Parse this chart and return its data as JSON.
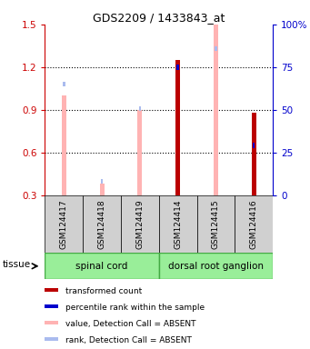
{
  "title": "GDS2209 / 1433843_at",
  "samples": [
    "GSM124417",
    "GSM124418",
    "GSM124419",
    "GSM124414",
    "GSM124415",
    "GSM124416"
  ],
  "absent_value": [
    1.0,
    0.38,
    0.9,
    null,
    1.5,
    null
  ],
  "absent_rank_val": [
    1.08,
    0.4,
    0.91,
    null,
    1.33,
    null
  ],
  "present_value": [
    null,
    null,
    null,
    1.25,
    null,
    0.88
  ],
  "present_rank_val": [
    null,
    null,
    null,
    1.2,
    null,
    0.65
  ],
  "ylim_left": [
    0.3,
    1.5
  ],
  "ylim_right": [
    0,
    100
  ],
  "yticks_left": [
    0.3,
    0.6,
    0.9,
    1.2,
    1.5
  ],
  "yticks_right": [
    0,
    25,
    50,
    75,
    100
  ],
  "color_absent_value": "#ffb3b3",
  "color_absent_rank": "#aabbee",
  "color_present_value": "#bb0000",
  "color_present_rank": "#0000cc",
  "legend_items": [
    {
      "color": "#bb0000",
      "label": "transformed count"
    },
    {
      "color": "#0000cc",
      "label": "percentile rank within the sample"
    },
    {
      "color": "#ffb3b3",
      "label": "value, Detection Call = ABSENT"
    },
    {
      "color": "#aabbee",
      "label": "rank, Detection Call = ABSENT"
    }
  ],
  "tissue_color": "#99ee99",
  "tissue_border_color": "#44aa44",
  "left_axis_color": "#cc0000",
  "right_axis_color": "#0000cc",
  "spinal_cord_range": [
    0,
    2
  ],
  "drg_range": [
    3,
    5
  ]
}
